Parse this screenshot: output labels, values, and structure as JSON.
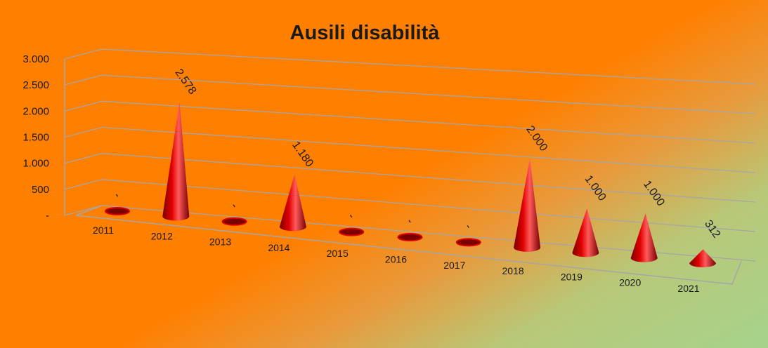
{
  "chart_data": {
    "type": "bar",
    "title": "Ausili disabilità",
    "categories": [
      "2011",
      "2012",
      "2013",
      "2014",
      "2015",
      "2016",
      "2017",
      "2018",
      "2019",
      "2020",
      "2021"
    ],
    "values": [
      0,
      2578,
      0,
      1180,
      0,
      0,
      0,
      2000,
      1000,
      1000,
      312
    ],
    "data_labels": [
      "-",
      "2.578",
      "-",
      "1.180",
      "-",
      "-",
      "-",
      "2.000",
      "1.000",
      "1.000",
      "312"
    ],
    "y_ticks": [
      "-",
      "500",
      "1.000",
      "1.500",
      "2.000",
      "2.500",
      "3.000"
    ],
    "ylim": [
      0,
      3000
    ],
    "bar_shape": "cone",
    "grid": true,
    "legend": false,
    "colors": {
      "bar": "#e00000",
      "bar_dark": "#7a0000",
      "bar_light": "#ff5a5a",
      "background_top": "#ff7f00",
      "background_bottom": "#a6d38c",
      "gridline": "#a6a6a6"
    }
  }
}
